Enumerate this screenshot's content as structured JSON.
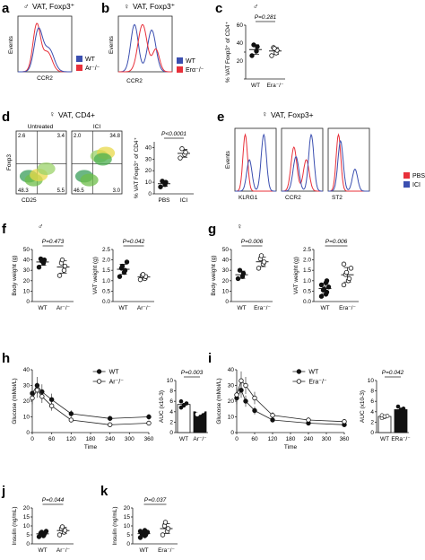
{
  "colors": {
    "wt": "#3b4fb0",
    "mutant": "#e8303a",
    "axis": "#222222"
  },
  "sex_symbols": {
    "male": "♂",
    "female": "♀"
  },
  "panels": {
    "a": {
      "letter": "a",
      "title": "VAT, Foxp3⁺",
      "sex": "male",
      "ylabel": "Events",
      "xlabel": "CCR2",
      "legend": [
        "WT",
        "Ar⁻/⁻"
      ]
    },
    "b": {
      "letter": "b",
      "title": "VAT, Foxp3⁺",
      "sex": "female",
      "ylabel": "Events",
      "xlabel": "CCR2",
      "legend": [
        "WT",
        "Erα⁻/⁻"
      ]
    },
    "c": {
      "letter": "c",
      "sex": "male",
      "ylabel": "% VAT Foxp3⁺ of CD4⁺",
      "pvalue": "P=0.281",
      "xticks": [
        "WT",
        "Era⁻/⁻"
      ],
      "yticks": [
        "20",
        "40",
        "60"
      ],
      "chart_data": {
        "type": "scatter",
        "categories": [
          "WT",
          "Era-/-"
        ],
        "ylim": [
          0,
          60
        ],
        "series": [
          {
            "values": [
              26,
              31,
              36,
              38
            ]
          },
          {
            "values": [
              26,
              29,
              32,
              35,
              34
            ]
          }
        ]
      }
    },
    "d": {
      "letter": "d",
      "title": "VAT, CD4+",
      "sex": "female",
      "left_label": "Untreated",
      "right_label": "ICI",
      "flow_ylabel": "Foxp3",
      "flow_xlabel": "CD25",
      "quadrants_untreated": [
        "2.6",
        "3.4",
        "48.3",
        "5.5"
      ],
      "quadrants_ici": [
        "2.0",
        "34.8",
        "46.5",
        "3.0"
      ],
      "pvalue": "P<0.0001",
      "ylabel": "% VAT Foxp3⁺ of CD4⁺",
      "xticks": [
        "PBS",
        "ICI"
      ],
      "yticks": [
        "0",
        "10",
        "20",
        "30",
        "40"
      ],
      "chart_data": {
        "type": "scatter",
        "categories": [
          "PBS",
          "ICI"
        ],
        "ylim": [
          0,
          45
        ],
        "series": [
          {
            "values": [
              6,
              8,
              10,
              11
            ]
          },
          {
            "values": [
              31,
              34,
              36,
              39
            ]
          }
        ]
      }
    },
    "e": {
      "letter": "e",
      "title": "VAT, Foxp3+",
      "sex": "female",
      "ylabel": "Events",
      "xlabels": [
        "KLRG1",
        "CCR2",
        "ST2"
      ],
      "legend": [
        "PBS",
        "ICI"
      ]
    },
    "f": {
      "letter": "f",
      "sex": "male",
      "bw": {
        "pvalue": "P=0.473",
        "ylabel": "Body weight (g)",
        "yticks": [
          "0",
          "10",
          "20",
          "30",
          "40",
          "50"
        ],
        "xticks": [
          "WT",
          "Ar⁻/⁻"
        ],
        "chart_data": {
          "type": "scatter",
          "categories": [
            "WT",
            "Ar-/-"
          ],
          "ylim": [
            0,
            50
          ],
          "series": [
            {
              "values": [
                33,
                37,
                40,
                41,
                39
              ]
            },
            {
              "values": [
                25,
                30,
                34,
                37,
                40
              ]
            }
          ]
        }
      },
      "vat": {
        "pvalue": "P=0.042",
        "ylabel": "VAT weight (g)",
        "yticks": [
          "0.0",
          "0.5",
          "1.0",
          "1.5",
          "2.0",
          "2.5"
        ],
        "xticks": [
          "WT",
          "Ar⁻/⁻"
        ],
        "chart_data": {
          "type": "scatter",
          "categories": [
            "WT",
            "Ar-/-"
          ],
          "ylim": [
            0,
            2.5
          ],
          "series": [
            {
              "values": [
                1.2,
                1.4,
                1.5,
                1.6,
                1.7,
                1.9
              ]
            },
            {
              "values": [
                1.05,
                1.1,
                1.2,
                1.25,
                1.3
              ]
            }
          ]
        }
      }
    },
    "g": {
      "letter": "g",
      "sex": "female",
      "bw": {
        "pvalue": "P=0.006",
        "ylabel": "Body weight (g)",
        "yticks": [
          "0",
          "10",
          "20",
          "30",
          "40",
          "50"
        ],
        "xticks": [
          "WT",
          "Era⁻/⁻"
        ],
        "chart_data": {
          "type": "scatter",
          "categories": [
            "WT",
            "Era-/-"
          ],
          "ylim": [
            0,
            50
          ],
          "series": [
            {
              "values": [
                22,
                24,
                27,
                30
              ]
            },
            {
              "values": [
                32,
                36,
                38,
                41,
                44
              ]
            }
          ]
        }
      },
      "vat": {
        "pvalue": "P=0.006",
        "ylabel": "VAT weight (g)",
        "yticks": [
          "0.0",
          "0.5",
          "1.0",
          "1.5",
          "2.0",
          "2.5"
        ],
        "xticks": [
          "WT",
          "Era⁻/⁻"
        ],
        "chart_data": {
          "type": "scatter",
          "categories": [
            "WT",
            "Era-/-"
          ],
          "ylim": [
            0,
            2.5
          ],
          "series": [
            {
              "values": [
                0.25,
                0.35,
                0.45,
                0.55,
                0.6,
                0.7,
                0.8,
                0.9,
                1.0
              ]
            },
            {
              "values": [
                0.8,
                1.0,
                1.1,
                1.3,
                1.4,
                1.6,
                1.8
              ]
            }
          ]
        }
      }
    },
    "h": {
      "letter": "h",
      "gtt": {
        "ylabel": "Glucose (mMol/L)",
        "xlabel": "Time",
        "yticks": [
          "0",
          "10",
          "20",
          "30",
          "40"
        ],
        "xticks": [
          "0",
          "60",
          "120",
          "180",
          "240",
          "300",
          "360"
        ],
        "legend": [
          "WT",
          "Ar⁻/⁻"
        ],
        "chart_data": {
          "type": "line",
          "x": [
            0,
            15,
            30,
            60,
            120,
            240,
            360
          ],
          "xlim": [
            0,
            360
          ],
          "ylim": [
            0,
            40
          ],
          "series": [
            {
              "name": "WT",
              "values": [
                25,
                30,
                26,
                21,
                12,
                9,
                10
              ]
            },
            {
              "name": "Ar-/-",
              "values": [
                22,
                27,
                23,
                17,
                8,
                5,
                6
              ]
            }
          ]
        }
      },
      "auc": {
        "pvalue": "P=0.003",
        "ylabel": "AUC (x10-3)",
        "yticks": [
          "0",
          "2",
          "4",
          "6",
          "8",
          "10"
        ],
        "xticks": [
          "WT",
          "Ar⁻/⁻"
        ],
        "chart_data": {
          "type": "bar",
          "categories": [
            "WT",
            "Ar-/-"
          ],
          "values": [
            5.4,
            4.0
          ],
          "ylim": [
            0,
            10
          ]
        }
      }
    },
    "i": {
      "letter": "i",
      "gtt": {
        "ylabel": "Glucose (mMol/L)",
        "xlabel": "Time",
        "yticks": [
          "0",
          "10",
          "20",
          "30",
          "40"
        ],
        "xticks": [
          "0",
          "60",
          "120",
          "180",
          "240",
          "300",
          "360"
        ],
        "legend": [
          "WT",
          "Era⁻/⁻"
        ],
        "chart_data": {
          "type": "line",
          "x": [
            0,
            15,
            30,
            60,
            120,
            240,
            360
          ],
          "xlim": [
            0,
            360
          ],
          "ylim": [
            0,
            40
          ],
          "series": [
            {
              "name": "WT",
              "values": [
                22,
                27,
                20,
                14,
                8,
                6,
                5
              ]
            },
            {
              "name": "Era-/-",
              "values": [
                24,
                33,
                30,
                22,
                11,
                8,
                7
              ]
            }
          ]
        }
      },
      "auc": {
        "pvalue": "P=0.042",
        "ylabel": "AUC (x10-3)",
        "yticks": [
          "0",
          "2",
          "4",
          "6",
          "8",
          "10"
        ],
        "xticks": [
          "WT",
          "ERa⁻/⁻"
        ],
        "chart_data": {
          "type": "bar",
          "categories": [
            "WT",
            "ERa-/-"
          ],
          "values": [
            3.1,
            4.4
          ],
          "ylim": [
            0,
            10
          ]
        }
      }
    },
    "j": {
      "letter": "j",
      "pvalue": "P=0.044",
      "ylabel": "Insulin (ng/mL)",
      "yticks": [
        "0",
        "5",
        "10",
        "15",
        "20"
      ],
      "xticks": [
        "WT",
        "Ar⁻/⁻"
      ],
      "chart_data": {
        "type": "scatter",
        "categories": [
          "WT",
          "Ar-/-"
        ],
        "ylim": [
          0,
          20
        ],
        "series": [
          {
            "values": [
              4.0,
              4.5,
              5.5,
              6.0,
              6.5,
              7.0
            ]
          },
          {
            "values": [
              5.0,
              6.5,
              7.5,
              8.5,
              9.5
            ]
          }
        ]
      }
    },
    "k": {
      "letter": "k",
      "pvalue": "P=0.037",
      "ylabel": "Insulin (ng/mL)",
      "yticks": [
        "0",
        "5",
        "10",
        "15",
        "20"
      ],
      "xticks": [
        "WT",
        "Era⁻/⁻"
      ],
      "chart_data": {
        "type": "scatter",
        "categories": [
          "WT",
          "Era-/-"
        ],
        "ylim": [
          0,
          20
        ],
        "series": [
          {
            "values": [
              3.5,
              4.5,
              5.0,
              5.5,
              6.0,
              6.5,
              7.0,
              7.5
            ]
          },
          {
            "values": [
              5.0,
              7.0,
              8.5,
              10.0,
              12.0
            ]
          }
        ]
      }
    }
  }
}
